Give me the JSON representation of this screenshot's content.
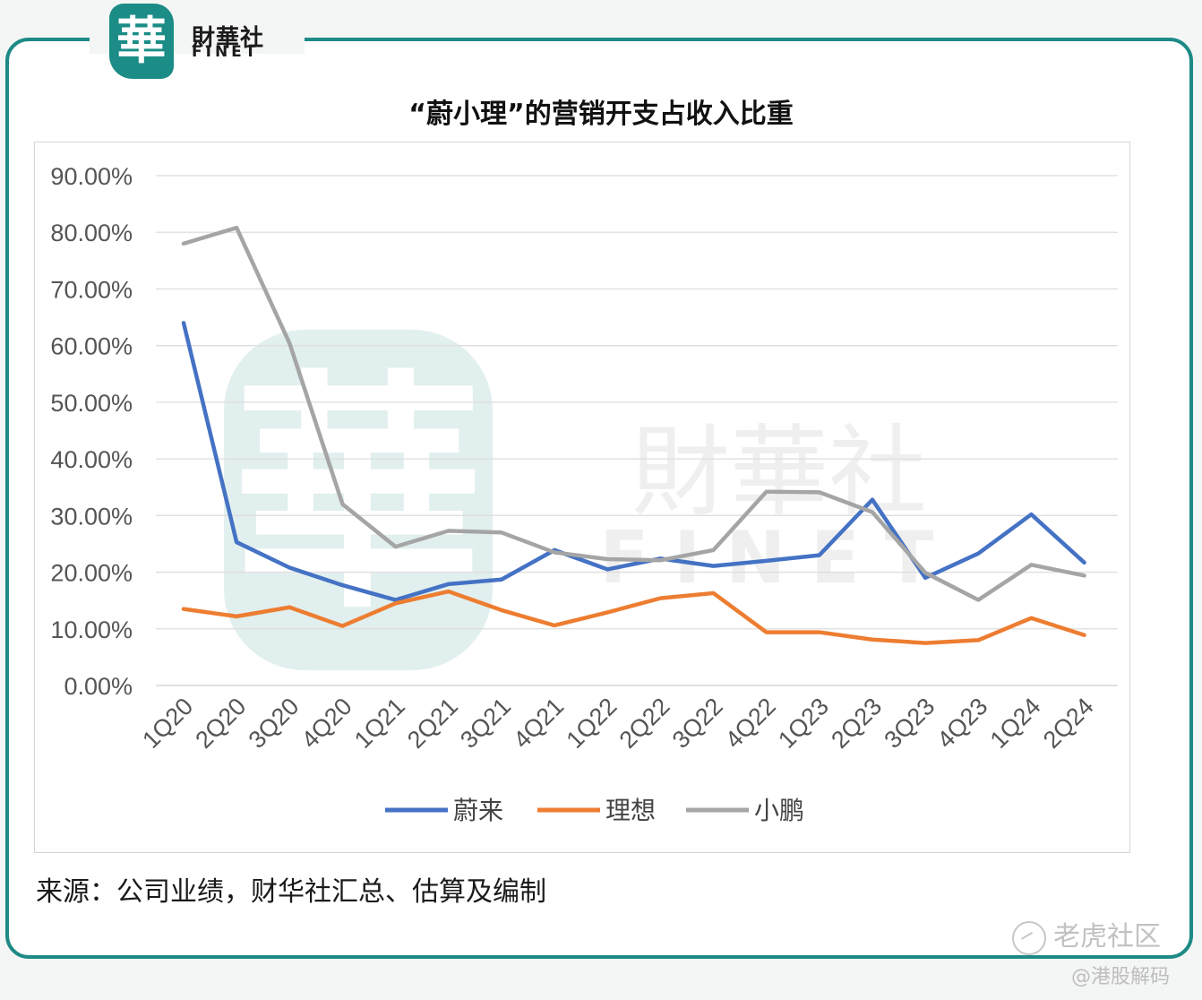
{
  "brand": {
    "seal_char": "華",
    "name_cn": "財華社",
    "name_en": "FINET"
  },
  "watermark": {
    "seal_char": "華",
    "text_cn": "財華社",
    "text_en": "FINET"
  },
  "colors": {
    "frame": "#1e8a86",
    "nio": "#4472c4",
    "li": "#ed7d31",
    "xpeng": "#a5a5a5"
  },
  "chart_data": {
    "type": "line",
    "title": "“蔚小理”的营销开支占收入比重",
    "categories": [
      "1Q20",
      "2Q20",
      "3Q20",
      "4Q20",
      "1Q21",
      "2Q21",
      "3Q21",
      "4Q21",
      "1Q22",
      "2Q22",
      "3Q22",
      "4Q22",
      "1Q23",
      "2Q23",
      "3Q23",
      "4Q23",
      "1Q24",
      "2Q24"
    ],
    "y_ticks": [
      "0.00%",
      "10.00%",
      "20.00%",
      "30.00%",
      "40.00%",
      "50.00%",
      "60.00%",
      "70.00%",
      "80.00%",
      "90.00%"
    ],
    "ylim": [
      0,
      90
    ],
    "grid": true,
    "legend_position": "bottom",
    "series": [
      {
        "name": "蔚来",
        "color": "#4472c4",
        "values": [
          64.0,
          25.3,
          20.8,
          17.7,
          15.1,
          17.9,
          18.7,
          23.9,
          20.5,
          22.4,
          21.1,
          22.0,
          23.0,
          32.8,
          19.0,
          23.3,
          30.2,
          21.7
        ]
      },
      {
        "name": "理想",
        "color": "#ed7d31",
        "values": [
          13.5,
          12.2,
          13.8,
          10.5,
          14.5,
          16.6,
          13.3,
          10.6,
          12.9,
          15.4,
          16.3,
          9.4,
          9.4,
          8.1,
          7.5,
          8.0,
          11.9,
          8.9
        ]
      },
      {
        "name": "小鹏",
        "color": "#a5a5a5",
        "values": [
          78.0,
          80.8,
          60.4,
          32.0,
          24.5,
          27.3,
          27.0,
          23.5,
          22.3,
          22.1,
          23.9,
          34.2,
          34.1,
          30.6,
          19.9,
          15.1,
          21.3,
          19.4
        ]
      }
    ]
  },
  "source_note": "来源：公司业绩，财华社汇总、估算及编制",
  "footer": {
    "platform": "老虎社区",
    "handle": "@港股解码"
  }
}
